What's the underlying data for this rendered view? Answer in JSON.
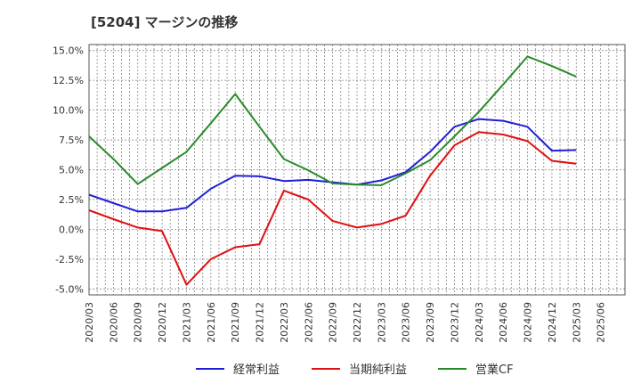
{
  "chart_data": {
    "type": "line",
    "title": "[5204]  マージンの推移",
    "xlabel": "",
    "ylabel": "",
    "ylim": [
      -5.5,
      15.5
    ],
    "y_ticks": [
      15.0,
      12.5,
      10.0,
      7.5,
      5.0,
      2.5,
      0.0,
      -2.5,
      -5.0
    ],
    "y_tick_labels": [
      "15.0%",
      "12.5%",
      "10.0%",
      "7.5%",
      "5.0%",
      "2.5%",
      "0.0%",
      "-2.5%",
      "-5.0%"
    ],
    "x_tick_labels": [
      "2020/03",
      "2020/06",
      "2020/09",
      "2020/12",
      "2021/03",
      "2021/06",
      "2021/09",
      "2021/12",
      "2022/03",
      "2022/06",
      "2022/09",
      "2022/12",
      "2023/03",
      "2023/06",
      "2023/09",
      "2023/12",
      "2024/03",
      "2024/06",
      "2024/09",
      "2024/12",
      "2025/03",
      "2025/06"
    ],
    "grid": true,
    "legend_position": "bottom",
    "series": [
      {
        "name": "経常利益",
        "color": "#1f1fd6",
        "values": [
          2.9,
          2.2,
          1.5,
          1.5,
          1.8,
          3.4,
          4.5,
          4.45,
          4.05,
          4.15,
          3.95,
          3.75,
          4.1,
          4.8,
          6.5,
          8.6,
          9.25,
          9.1,
          8.6,
          6.6,
          6.65,
          null
        ]
      },
      {
        "name": "当期純利益",
        "color": "#e01010",
        "values": [
          1.6,
          0.85,
          0.15,
          -0.15,
          -4.65,
          -2.5,
          -1.5,
          -1.25,
          3.25,
          2.5,
          0.7,
          0.15,
          0.45,
          1.15,
          4.5,
          7.05,
          8.15,
          7.95,
          7.4,
          5.75,
          5.5,
          null
        ]
      },
      {
        "name": "営業CF",
        "color": "#2a8a2a",
        "values": [
          7.8,
          5.9,
          3.8,
          5.15,
          6.5,
          8.9,
          11.35,
          8.6,
          5.9,
          4.95,
          3.85,
          3.75,
          3.7,
          4.7,
          5.8,
          7.8,
          9.85,
          12.15,
          14.5,
          13.7,
          12.8,
          null
        ]
      }
    ]
  }
}
